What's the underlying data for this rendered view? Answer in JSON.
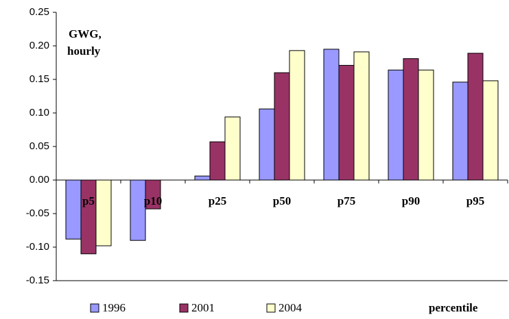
{
  "chart_data": {
    "type": "bar",
    "annotation": [
      "GWG,",
      "hourly"
    ],
    "x_label": "percentile",
    "categories": [
      "p5",
      "p10",
      "p25",
      "p50",
      "p75",
      "p90",
      "p95"
    ],
    "series": [
      {
        "name": "1996",
        "color": "#9999ff",
        "values": [
          -0.088,
          -0.09,
          0.006,
          0.106,
          0.195,
          0.164,
          0.146
        ]
      },
      {
        "name": "2001",
        "color": "#993366",
        "values": [
          -0.11,
          -0.043,
          0.057,
          0.16,
          0.171,
          0.181,
          0.189
        ]
      },
      {
        "name": "2004",
        "color": "#ffffcc",
        "values": [
          -0.098,
          null,
          0.094,
          0.193,
          0.191,
          0.164,
          0.148
        ]
      }
    ],
    "ylim": [
      -0.15,
      0.25
    ],
    "yticks": [
      {
        "value": -0.15,
        "label": "-0.15"
      },
      {
        "value": -0.1,
        "label": "-0.10"
      },
      {
        "value": -0.05,
        "label": "-0.05"
      },
      {
        "value": 0,
        "label": "0.00"
      },
      {
        "value": 0.05,
        "label": "0.05"
      },
      {
        "value": 0.1,
        "label": "0.10"
      },
      {
        "value": 0.15,
        "label": "0.15"
      },
      {
        "value": 0.2,
        "label": "0.20"
      },
      {
        "value": 0.25,
        "label": "0.25"
      }
    ],
    "grid": false
  }
}
